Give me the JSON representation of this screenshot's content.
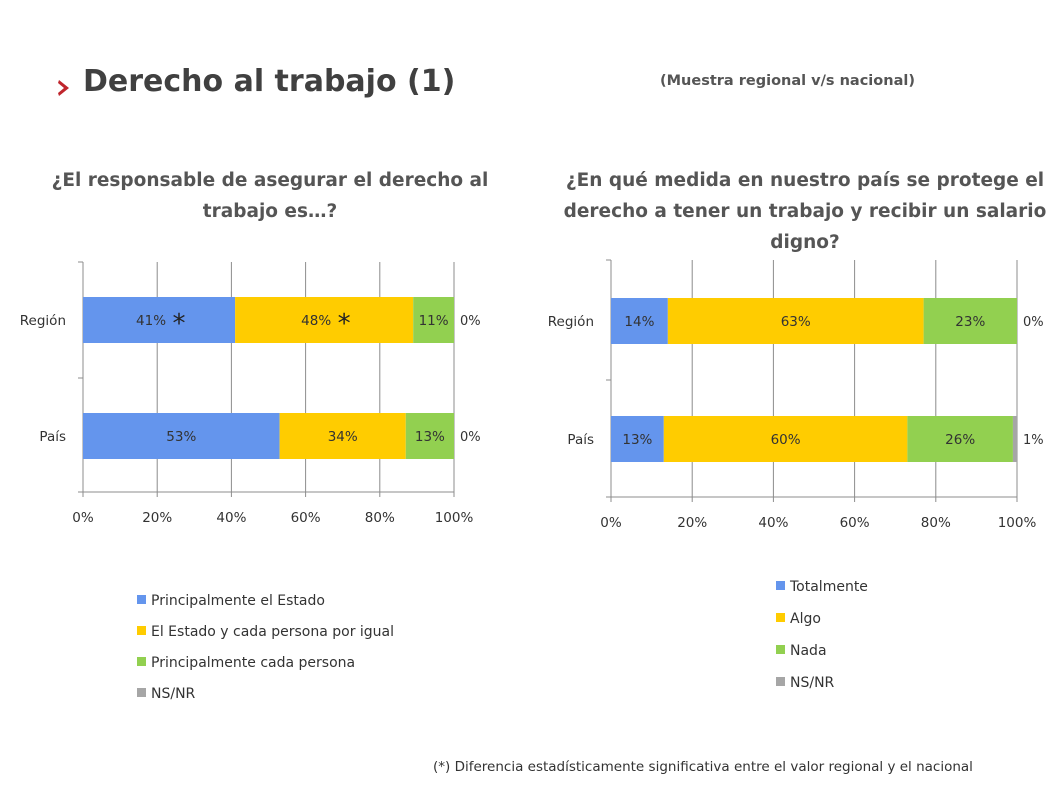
{
  "header": {
    "title": "Derecho al trabajo (1)",
    "subtitle": "(Muestra regional v/s nacional)",
    "arrow_color": "#c0262d",
    "arrow_icon": "chevron-right-icon"
  },
  "footnote": "(*) Diferencia estadísticamente significativa entre el valor regional y el nacional",
  "chart_data": [
    {
      "type": "bar",
      "orientation": "horizontal-stacked-100",
      "title": "¿El responsable de asegurar el derecho al trabajo es…?",
      "categories": [
        "Región",
        "País"
      ],
      "series": [
        {
          "name": "Principalmente el Estado",
          "color": "#6495ed",
          "values": [
            41,
            53
          ],
          "labels": [
            "41%",
            "53%"
          ]
        },
        {
          "name": "El Estado y cada persona por igual",
          "color": "#ffcc00",
          "values": [
            48,
            34
          ],
          "labels": [
            "48%",
            "34%"
          ]
        },
        {
          "name": "Principalmente cada persona",
          "color": "#92d050",
          "values": [
            11,
            13
          ],
          "labels": [
            "11%",
            "13%"
          ]
        },
        {
          "name": "NS/NR",
          "color": "#a6a6a6",
          "values": [
            0,
            0
          ],
          "labels": [
            "0%",
            "0%"
          ]
        }
      ],
      "significance_marks": [
        {
          "category": "Región",
          "series": "Principalmente el Estado",
          "mark": "*"
        },
        {
          "category": "Región",
          "series": "El Estado y cada persona por igual",
          "mark": "*"
        }
      ],
      "xlim": [
        0,
        100
      ],
      "xticks": [
        "0%",
        "20%",
        "40%",
        "60%",
        "80%",
        "100%"
      ],
      "grid": true,
      "legend_position": "bottom"
    },
    {
      "type": "bar",
      "orientation": "horizontal-stacked-100",
      "title": "¿En qué medida en nuestro país se protege el derecho a tener un trabajo y recibir un salario digno?",
      "categories": [
        "Región",
        "País"
      ],
      "series": [
        {
          "name": "Totalmente",
          "color": "#6495ed",
          "values": [
            14,
            13
          ],
          "labels": [
            "14%",
            "13%"
          ]
        },
        {
          "name": "Algo",
          "color": "#ffcc00",
          "values": [
            63,
            60
          ],
          "labels": [
            "63%",
            "60%"
          ]
        },
        {
          "name": "Nada",
          "color": "#92d050",
          "values": [
            23,
            26
          ],
          "labels": [
            "23%",
            "26%"
          ]
        },
        {
          "name": "NS/NR",
          "color": "#a6a6a6",
          "values": [
            0,
            1
          ],
          "labels": [
            "0%",
            "1%"
          ]
        }
      ],
      "significance_marks": [],
      "xlim": [
        0,
        100
      ],
      "xticks": [
        "0%",
        "20%",
        "40%",
        "60%",
        "80%",
        "100%"
      ],
      "grid": true,
      "legend_position": "bottom"
    }
  ]
}
